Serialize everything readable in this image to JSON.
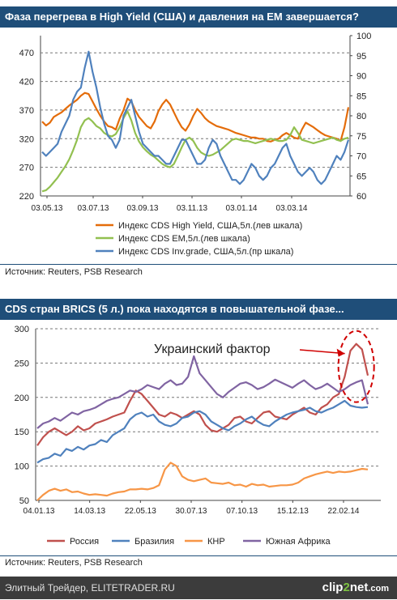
{
  "header1": "Фаза перегрева в High Yield (США) и давления на ЕМ завершается?",
  "header2": "CDS стран BRICS (5 л.) пока находятся в повышательной фазе...",
  "source1": "Источник: Reuters, PSB Research",
  "source2": "Источник: Reuters, PSB Research",
  "footer": {
    "site": "Элитный Трейдер, ELITETRADER.RU",
    "logo_pre": "clip",
    "logo_mid": "2",
    "logo_post": "net",
    "logo_tld": ".com"
  },
  "chart_data": [
    {
      "type": "line",
      "x_ticks": [
        "03.05.13",
        "03.07.13",
        "03.09.13",
        "03.11.13",
        "03.01.14",
        "03.03.14"
      ],
      "y_left_ticks": [
        "220",
        "270",
        "320",
        "370",
        "420",
        "470"
      ],
      "y_right_ticks": [
        "60",
        "65",
        "70",
        "75",
        "80",
        "85",
        "90",
        "95",
        "100"
      ],
      "ylim_left": [
        220,
        500
      ],
      "ylim_right": [
        60,
        100
      ],
      "grid": true,
      "legend_position": "bottom",
      "series": [
        {
          "name": "Индекс CDS High Yield, США,5л.(лев шкала)",
          "axis": "left",
          "color": "#e46c0a",
          "values": [
            350,
            343,
            348,
            358,
            362,
            366,
            372,
            378,
            383,
            388,
            395,
            400,
            398,
            385,
            372,
            360,
            350,
            342,
            340,
            336,
            355,
            370,
            390,
            385,
            370,
            358,
            350,
            342,
            338,
            350,
            368,
            380,
            388,
            380,
            366,
            352,
            340,
            334,
            345,
            360,
            372,
            365,
            356,
            350,
            346,
            342,
            340,
            338,
            336,
            333,
            330,
            328,
            326,
            324,
            322,
            322,
            320,
            320,
            316,
            315,
            318,
            320,
            326,
            330,
            326,
            322,
            320,
            336,
            348,
            344,
            340,
            335,
            330,
            326,
            324,
            322,
            320,
            316,
            340,
            375
          ]
        },
        {
          "name": "Индекс CDS EM,5л.(лев шкала)",
          "axis": "left",
          "color": "#92c050",
          "values": [
            228,
            230,
            236,
            244,
            252,
            262,
            272,
            284,
            300,
            318,
            340,
            352,
            356,
            350,
            342,
            338,
            330,
            326,
            324,
            328,
            340,
            356,
            368,
            352,
            330,
            315,
            305,
            298,
            292,
            288,
            282,
            276,
            272,
            270,
            276,
            290,
            305,
            318,
            322,
            316,
            304,
            296,
            292,
            290,
            292,
            296,
            300,
            306,
            312,
            318,
            320,
            318,
            316,
            316,
            314,
            312,
            314,
            316,
            318,
            320,
            318,
            316,
            316,
            318,
            326,
            340,
            330,
            318,
            316,
            314,
            312,
            314,
            316,
            318,
            320,
            322,
            318,
            316,
            320,
            322
          ]
        },
        {
          "name": "Индекс CDS Inv.grade, США,5л.(пр шкала)",
          "axis": "right",
          "color": "#4f81bd",
          "values": [
            71,
            70,
            71,
            72,
            73,
            76,
            78,
            80,
            84,
            86,
            87,
            92,
            96,
            91,
            87,
            82,
            78,
            75,
            74,
            72,
            74,
            80,
            82,
            84,
            80,
            76,
            73,
            72,
            71,
            70,
            70,
            69,
            68,
            68,
            70,
            72,
            74,
            74,
            72,
            70,
            68,
            68,
            69,
            72,
            74,
            73,
            70,
            68,
            66,
            64,
            64,
            63,
            64,
            66,
            68,
            67,
            65,
            64,
            65,
            67,
            68,
            70,
            72,
            73,
            70,
            68,
            66,
            65,
            66,
            67,
            66,
            64,
            63,
            64,
            66,
            68,
            70,
            69,
            71,
            74
          ]
        }
      ]
    },
    {
      "type": "line",
      "x_ticks": [
        "04.01.13",
        "14.03.13",
        "22.05.13",
        "30.07.13",
        "07.10.13",
        "15.12.13",
        "22.02.14"
      ],
      "y_ticks": [
        "50",
        "100",
        "150",
        "200",
        "250",
        "300"
      ],
      "ylim": [
        50,
        300
      ],
      "grid": true,
      "legend_position": "bottom",
      "annotation": "Украинский фактор",
      "series": [
        {
          "name": "Россия",
          "color": "#c0504d",
          "values": [
            130,
            142,
            150,
            155,
            150,
            145,
            150,
            158,
            152,
            155,
            162,
            165,
            168,
            172,
            175,
            178,
            195,
            210,
            205,
            195,
            185,
            175,
            172,
            178,
            175,
            170,
            175,
            180,
            175,
            160,
            152,
            150,
            155,
            160,
            170,
            172,
            165,
            162,
            170,
            178,
            180,
            172,
            170,
            168,
            175,
            180,
            185,
            178,
            175,
            185,
            190,
            200,
            205,
            230,
            268,
            278,
            270,
            232
          ]
        },
        {
          "name": "Бразилия",
          "color": "#4f81bd",
          "values": [
            105,
            110,
            112,
            118,
            115,
            125,
            122,
            128,
            124,
            130,
            132,
            138,
            135,
            145,
            150,
            155,
            168,
            175,
            178,
            172,
            175,
            165,
            160,
            158,
            162,
            170,
            172,
            178,
            180,
            175,
            165,
            160,
            155,
            152,
            158,
            162,
            168,
            172,
            165,
            160,
            158,
            165,
            170,
            175,
            178,
            180,
            182,
            185,
            180,
            178,
            182,
            185,
            190,
            195,
            188,
            186,
            185,
            186
          ]
        },
        {
          "name": "КНР",
          "color": "#f79646",
          "values": [
            50,
            58,
            64,
            67,
            64,
            66,
            62,
            63,
            60,
            58,
            59,
            58,
            57,
            60,
            62,
            63,
            66,
            66,
            67,
            66,
            68,
            72,
            95,
            105,
            100,
            85,
            80,
            78,
            80,
            82,
            76,
            75,
            74,
            76,
            72,
            73,
            70,
            74,
            72,
            73,
            70,
            71,
            72,
            72,
            73,
            76,
            82,
            85,
            88,
            90,
            92,
            90,
            92,
            91,
            92,
            94,
            96,
            95
          ]
        },
        {
          "name": "Южная Африка",
          "color": "#8064a2",
          "values": [
            155,
            162,
            165,
            170,
            166,
            172,
            178,
            175,
            180,
            182,
            185,
            190,
            195,
            198,
            200,
            205,
            210,
            208,
            212,
            218,
            215,
            212,
            220,
            225,
            218,
            220,
            230,
            260,
            235,
            225,
            215,
            205,
            200,
            208,
            214,
            220,
            222,
            218,
            212,
            215,
            220,
            226,
            222,
            218,
            214,
            220,
            225,
            218,
            212,
            215,
            220,
            214,
            208,
            212,
            218,
            222,
            225,
            190
          ]
        }
      ]
    }
  ]
}
